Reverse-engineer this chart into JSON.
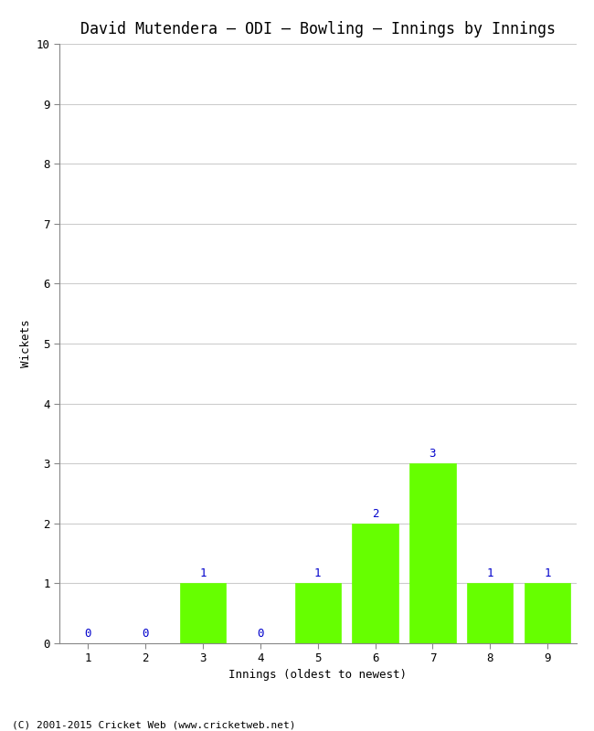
{
  "title": "David Mutendera – ODI – Bowling – Innings by Innings",
  "xlabel": "Innings (oldest to newest)",
  "ylabel": "Wickets",
  "innings": [
    1,
    2,
    3,
    4,
    5,
    6,
    7,
    8,
    9
  ],
  "wickets": [
    0,
    0,
    1,
    0,
    1,
    2,
    3,
    1,
    1
  ],
  "bar_color": "#66ff00",
  "bar_edge_color": "#66ff00",
  "ylim": [
    0,
    10
  ],
  "yticks": [
    0,
    1,
    2,
    3,
    4,
    5,
    6,
    7,
    8,
    9,
    10
  ],
  "xtick_labels": [
    "1",
    "2",
    "3",
    "4",
    "5",
    "6",
    "7",
    "8",
    "9"
  ],
  "label_color": "#0000cc",
  "grid_color": "#cccccc",
  "background_color": "#ffffff",
  "footer_text": "(C) 2001-2015 Cricket Web (www.cricketweb.net)",
  "title_fontsize": 12,
  "label_fontsize": 9,
  "tick_fontsize": 9,
  "annotation_fontsize": 9,
  "footer_fontsize": 8
}
